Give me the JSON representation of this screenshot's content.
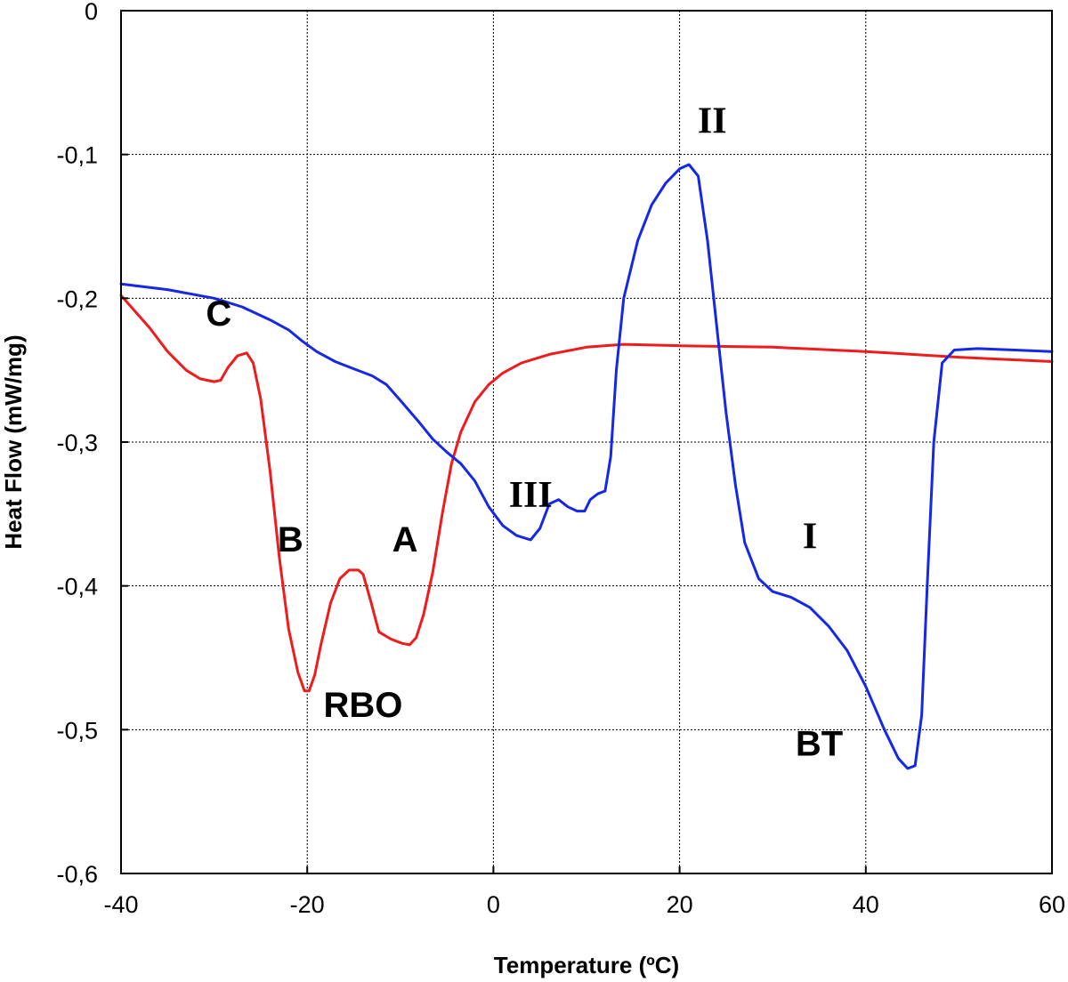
{
  "chart_data": {
    "type": "line",
    "xlabel": "Temperature (ºC)",
    "ylabel": "Heat Flow (mW/mg)",
    "xlim": [
      -40,
      60
    ],
    "ylim": [
      -0.6,
      0
    ],
    "xticks": [
      -40,
      -20,
      0,
      20,
      40,
      60
    ],
    "xtick_labels": [
      "-40",
      "-20",
      "0",
      "20",
      "40",
      "60"
    ],
    "yticks": [
      0,
      -0.1,
      -0.2,
      -0.3,
      -0.4,
      -0.5,
      -0.6
    ],
    "ytick_labels": [
      "0",
      "-0,1",
      "-0,2",
      "-0,3",
      "-0,4",
      "-0,5",
      "-0,6"
    ],
    "grid": true,
    "series": [
      {
        "color": "#ee1c1c",
        "points": [
          [
            -40,
            -0.198
          ],
          [
            -37,
            -0.22
          ],
          [
            -35,
            -0.237
          ],
          [
            -33,
            -0.25
          ],
          [
            -31.5,
            -0.256
          ],
          [
            -30,
            -0.258
          ],
          [
            -29.3,
            -0.257
          ],
          [
            -28.5,
            -0.248
          ],
          [
            -27.5,
            -0.24
          ],
          [
            -26.5,
            -0.238
          ],
          [
            -25.8,
            -0.245
          ],
          [
            -25,
            -0.27
          ],
          [
            -24,
            -0.32
          ],
          [
            -23,
            -0.38
          ],
          [
            -22,
            -0.43
          ],
          [
            -21,
            -0.46
          ],
          [
            -20.3,
            -0.473
          ],
          [
            -19.8,
            -0.473
          ],
          [
            -19.2,
            -0.462
          ],
          [
            -18.5,
            -0.44
          ],
          [
            -17.5,
            -0.412
          ],
          [
            -16.5,
            -0.395
          ],
          [
            -15.5,
            -0.389
          ],
          [
            -14.5,
            -0.389
          ],
          [
            -14,
            -0.392
          ],
          [
            -13.2,
            -0.41
          ],
          [
            -12.3,
            -0.432
          ],
          [
            -11,
            -0.437
          ],
          [
            -9.8,
            -0.44
          ],
          [
            -9,
            -0.441
          ],
          [
            -8.3,
            -0.436
          ],
          [
            -7.5,
            -0.42
          ],
          [
            -6.5,
            -0.39
          ],
          [
            -5.5,
            -0.35
          ],
          [
            -4.5,
            -0.315
          ],
          [
            -3.5,
            -0.293
          ],
          [
            -2,
            -0.272
          ],
          [
            -0.5,
            -0.26
          ],
          [
            1,
            -0.252
          ],
          [
            3,
            -0.245
          ],
          [
            6,
            -0.239
          ],
          [
            10,
            -0.234
          ],
          [
            14,
            -0.232
          ],
          [
            20,
            -0.233
          ],
          [
            30,
            -0.234
          ],
          [
            40,
            -0.237
          ],
          [
            50,
            -0.241
          ],
          [
            60,
            -0.244
          ]
        ]
      },
      {
        "color": "#1528e6",
        "points": [
          [
            -40,
            -0.19
          ],
          [
            -35,
            -0.194
          ],
          [
            -30,
            -0.2
          ],
          [
            -27,
            -0.206
          ],
          [
            -24,
            -0.215
          ],
          [
            -22,
            -0.222
          ],
          [
            -20.5,
            -0.23
          ],
          [
            -19,
            -0.237
          ],
          [
            -17,
            -0.244
          ],
          [
            -15,
            -0.249
          ],
          [
            -13,
            -0.254
          ],
          [
            -11.5,
            -0.26
          ],
          [
            -10,
            -0.271
          ],
          [
            -8,
            -0.286
          ],
          [
            -6.5,
            -0.298
          ],
          [
            -5,
            -0.307
          ],
          [
            -3.5,
            -0.315
          ],
          [
            -2,
            -0.327
          ],
          [
            -0.5,
            -0.345
          ],
          [
            1,
            -0.358
          ],
          [
            2.5,
            -0.365
          ],
          [
            4,
            -0.368
          ],
          [
            5,
            -0.36
          ],
          [
            6,
            -0.343
          ],
          [
            7,
            -0.34
          ],
          [
            8,
            -0.345
          ],
          [
            9,
            -0.348
          ],
          [
            9.8,
            -0.348
          ],
          [
            10.4,
            -0.34
          ],
          [
            11.2,
            -0.336
          ],
          [
            12,
            -0.334
          ],
          [
            12.6,
            -0.31
          ],
          [
            13.2,
            -0.25
          ],
          [
            14,
            -0.2
          ],
          [
            15.5,
            -0.16
          ],
          [
            17,
            -0.135
          ],
          [
            18.5,
            -0.12
          ],
          [
            20,
            -0.11
          ],
          [
            21,
            -0.107
          ],
          [
            22,
            -0.115
          ],
          [
            23,
            -0.16
          ],
          [
            24,
            -0.22
          ],
          [
            25,
            -0.28
          ],
          [
            26,
            -0.33
          ],
          [
            27,
            -0.37
          ],
          [
            28.5,
            -0.395
          ],
          [
            30,
            -0.404
          ],
          [
            32,
            -0.408
          ],
          [
            34,
            -0.415
          ],
          [
            36,
            -0.428
          ],
          [
            38,
            -0.445
          ],
          [
            40,
            -0.47
          ],
          [
            42,
            -0.5
          ],
          [
            43.5,
            -0.52
          ],
          [
            44.5,
            -0.527
          ],
          [
            45.3,
            -0.525
          ],
          [
            46,
            -0.49
          ],
          [
            46.6,
            -0.4
          ],
          [
            47.3,
            -0.3
          ],
          [
            48.2,
            -0.245
          ],
          [
            49.5,
            -0.236
          ],
          [
            52,
            -0.235
          ],
          [
            56,
            -0.236
          ],
          [
            60,
            -0.237
          ]
        ]
      }
    ],
    "annotations": [
      {
        "text": "C",
        "x": -29.5,
        "y": -0.219,
        "style": "sans"
      },
      {
        "text": "B",
        "x": -21.8,
        "y": -0.376,
        "style": "sans"
      },
      {
        "text": "A",
        "x": -9.5,
        "y": -0.376,
        "style": "sans"
      },
      {
        "text": "RBO",
        "x": -14,
        "y": -0.491,
        "style": "sans"
      },
      {
        "text": "III",
        "x": 4,
        "y": -0.345,
        "style": "serif"
      },
      {
        "text": "II",
        "x": 23.5,
        "y": -0.085,
        "style": "serif"
      },
      {
        "text": "I",
        "x": 34,
        "y": -0.374,
        "style": "serif"
      },
      {
        "text": "BT",
        "x": 35,
        "y": -0.518,
        "style": "sans"
      }
    ]
  }
}
